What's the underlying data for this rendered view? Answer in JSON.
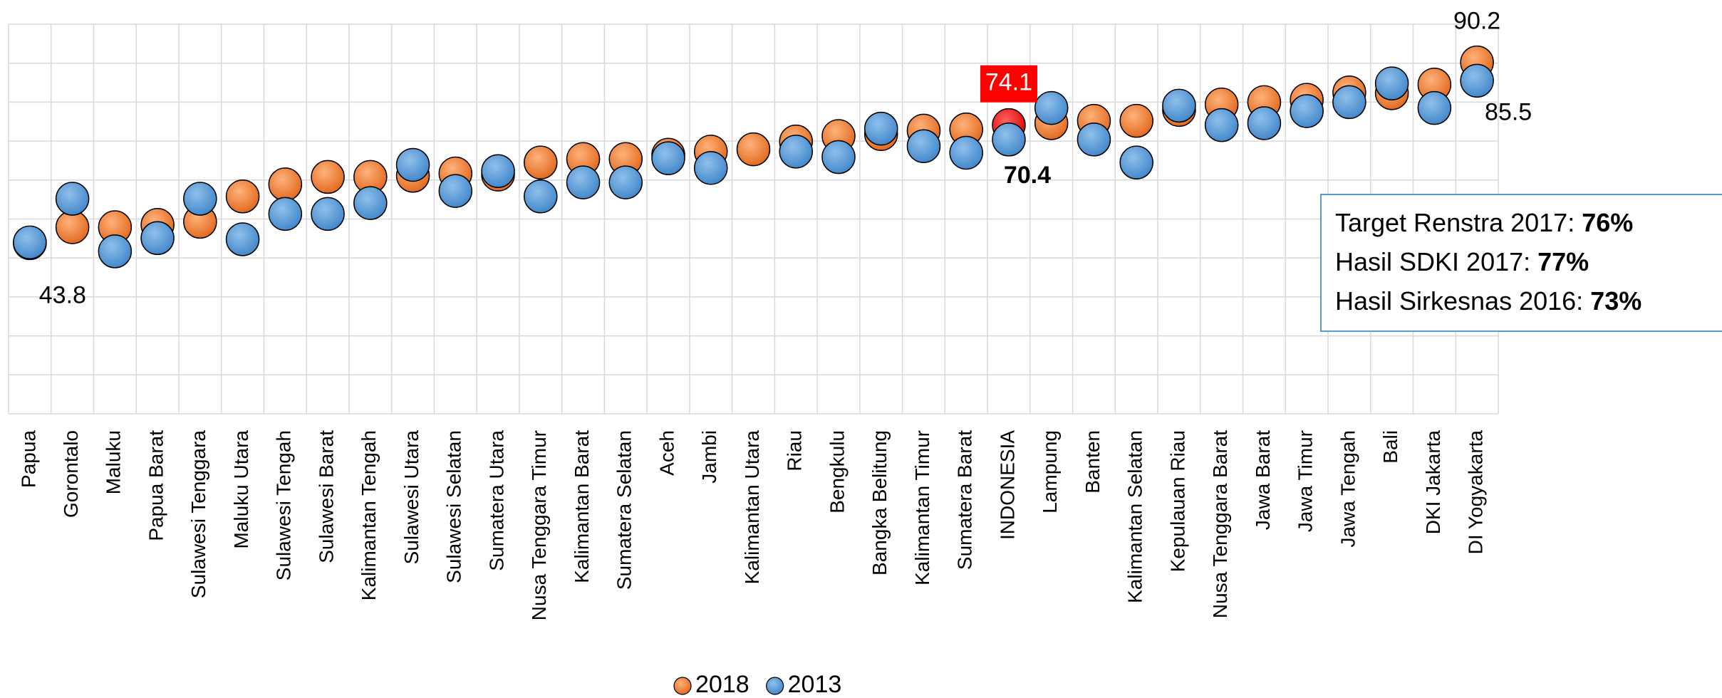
{
  "chart_data": {
    "type": "dot",
    "categories": [
      "Papua",
      "Gorontalo",
      "Maluku",
      "Papua Barat",
      "Sulawesi Tenggara",
      "Maluku Utara",
      "Sulawesi Tengah",
      "Sulawesi Barat",
      "Kalimantan Tengah",
      "Sulawesi Utara",
      "Sulawesi Selatan",
      "Sumatera Utara",
      "Nusa Tenggara Timur",
      "Kalimantan Barat",
      "Sumatera Selatan",
      "Aceh",
      "Jambi",
      "Kalimantan Utara",
      "Riau",
      "Bengkulu",
      "Bangka Belitung",
      "Kalimantan Timur",
      "Sumatera Barat",
      "INDONESIA",
      "Lampung",
      "Banten",
      "Kalimantan Selatan",
      "Kepulauan Riau",
      "Nusa Tenggara Barat",
      "Jawa Barat",
      "Jawa Timur",
      "Jawa Tengah",
      "Bali",
      "DKI Jakarta",
      "DI Yogyakarta"
    ],
    "series": [
      {
        "name": "2018",
        "color": "#f07f2f",
        "highlight": {
          "category": "INDONESIA",
          "color": "#ff0000"
        },
        "values": [
          43.8,
          47.9,
          47.9,
          48.5,
          49.3,
          55.8,
          58.9,
          60.8,
          60.8,
          61.1,
          61.7,
          61.4,
          64.5,
          65.4,
          65.4,
          66.5,
          67.3,
          67.9,
          69.9,
          71.3,
          71.8,
          72.7,
          73.0,
          74.1,
          74.6,
          75.2,
          75.2,
          78.0,
          79.4,
          80.0,
          80.6,
          82.5,
          82.3,
          84.5,
          90.2
        ],
        "value_labels": [
          "43.8",
          null,
          null,
          null,
          null,
          null,
          null,
          null,
          null,
          null,
          null,
          null,
          null,
          null,
          null,
          null,
          null,
          null,
          null,
          null,
          null,
          null,
          null,
          "74.1",
          null,
          null,
          null,
          null,
          null,
          null,
          null,
          null,
          null,
          null,
          "90.2"
        ]
      },
      {
        "name": "2013",
        "color": "#5b9bd5",
        "values": [
          44.0,
          55.2,
          41.7,
          45.1,
          55.2,
          44.8,
          51.3,
          51.3,
          54.1,
          63.9,
          57.2,
          62.3,
          55.8,
          59.4,
          59.4,
          65.6,
          63.1,
          null,
          67.3,
          65.9,
          73.2,
          68.7,
          67.0,
          70.4,
          78.5,
          70.4,
          64.5,
          79.1,
          74.1,
          74.6,
          77.7,
          80.0,
          84.8,
          78.5,
          85.5
        ],
        "value_labels": [
          null,
          null,
          null,
          null,
          null,
          null,
          null,
          null,
          null,
          null,
          null,
          null,
          null,
          null,
          null,
          null,
          null,
          null,
          null,
          null,
          null,
          null,
          null,
          "70.4",
          null,
          null,
          null,
          null,
          null,
          null,
          null,
          null,
          null,
          null,
          "85.5"
        ]
      }
    ],
    "ylim": [
      0,
      100
    ],
    "yticks": [
      0,
      10,
      20,
      30,
      40,
      50,
      60,
      70,
      80,
      90,
      100
    ],
    "grid": true,
    "legend": "bottom",
    "text_box": [
      {
        "text": "Target Renstra 2017: ",
        "value": "76%"
      },
      {
        "text": "Hasil SDKI 2017: ",
        "value": "77%"
      },
      {
        "text": "Hasil Sirkesnas 2016: ",
        "value": "73%"
      }
    ]
  }
}
